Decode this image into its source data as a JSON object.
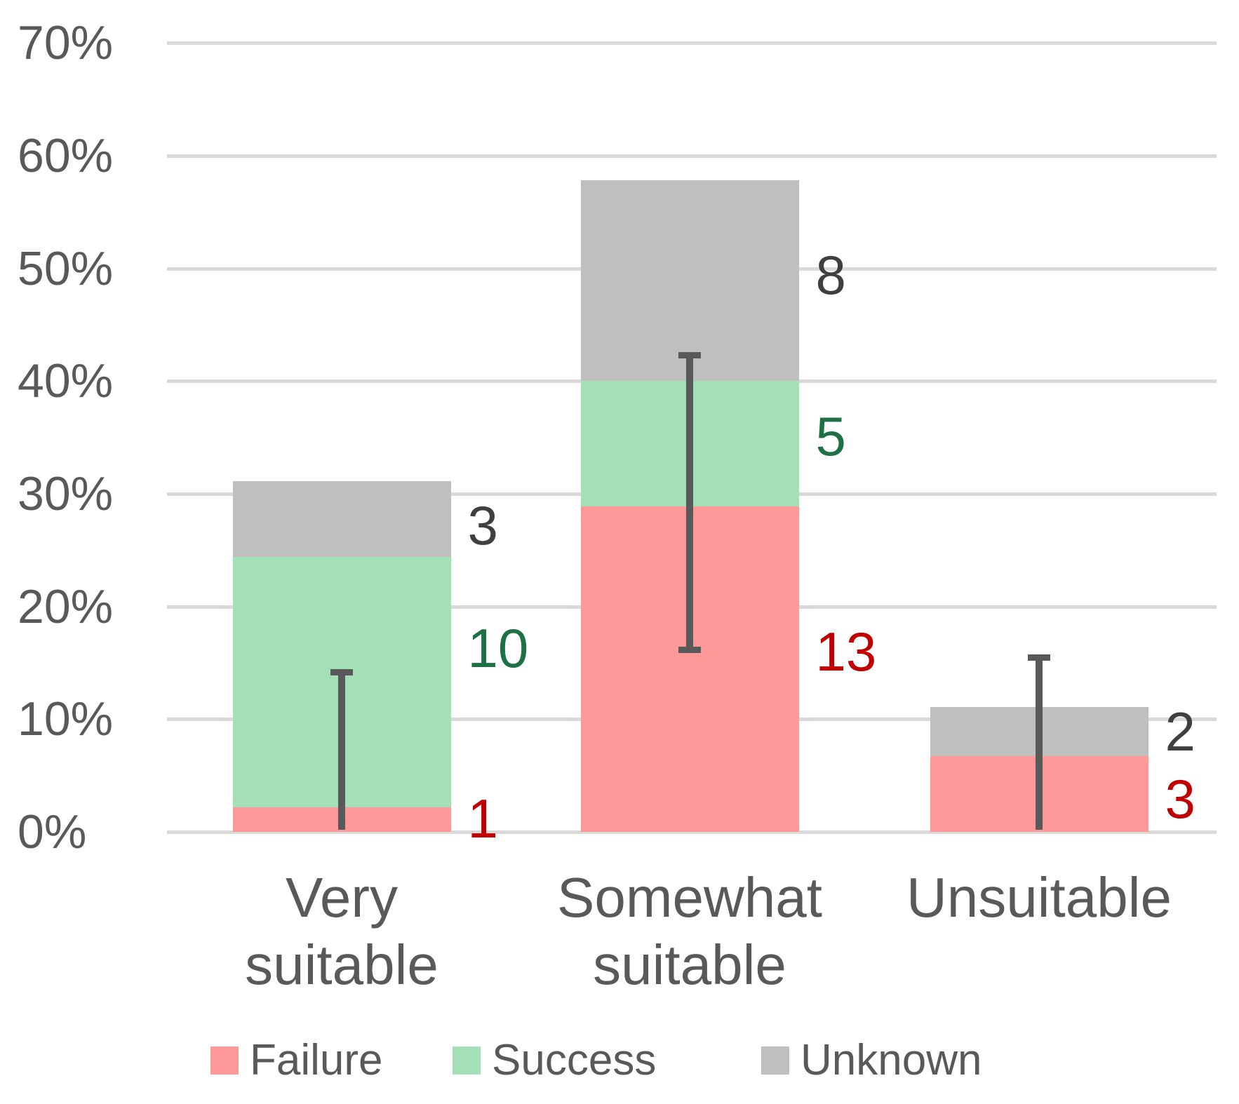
{
  "chart_data": {
    "type": "bar",
    "stacked": true,
    "title": "",
    "categories": [
      "Very suitable",
      "Somewhat suitable",
      "Unsuitable"
    ],
    "category_lines": [
      [
        "Very",
        "suitable"
      ],
      [
        "Somewhat",
        "suitable"
      ],
      [
        "Unsuitable"
      ]
    ],
    "series": [
      {
        "name": "Failure",
        "color": "#FF9999",
        "label_color": "#C00000",
        "values_pct": [
          2.2,
          28.9,
          6.7
        ],
        "counts": [
          1,
          13,
          3
        ],
        "label_pct": [
          1.2,
          16.0,
          2.9
        ]
      },
      {
        "name": "Success",
        "color": "#A3E0B8",
        "label_color": "#1E7145",
        "values_pct": [
          22.2,
          11.1,
          0
        ],
        "counts": [
          10,
          5,
          null
        ],
        "label_pct": [
          16.3,
          35.1,
          null
        ]
      },
      {
        "name": "Unknown",
        "color": "#BFBFBF",
        "label_color": "#3F3F3F",
        "values_pct": [
          6.7,
          17.8,
          4.4
        ],
        "counts": [
          3,
          8,
          2
        ],
        "label_pct": [
          27.2,
          49.4,
          8.9
        ]
      }
    ],
    "stack_totals_pct": [
      31.1,
      57.8,
      11.1
    ],
    "error_bars": [
      {
        "low": 0.2,
        "high": 14.2,
        "top_cap": true,
        "bottom_cap": false
      },
      {
        "low": 16.2,
        "high": 42.3,
        "top_cap": true,
        "bottom_cap": true
      },
      {
        "low": 0.2,
        "high": 15.5,
        "top_cap": true,
        "bottom_cap": false
      }
    ],
    "y_axis": {
      "tick_labels": [
        "70%",
        "60%",
        "50%",
        "40%",
        "30%",
        "20%",
        "10%",
        "0%"
      ],
      "tick_values": [
        70,
        60,
        50,
        40,
        30,
        20,
        10,
        0
      ],
      "min": 0,
      "max": 70,
      "unit": "%",
      "grid": true
    },
    "legend": {
      "position": "bottom",
      "entries": [
        "Failure",
        "Success",
        "Unknown"
      ]
    },
    "colors": {
      "gridline": "#D9D9D9",
      "axis_text": "#595959",
      "error_bar": "#595959"
    }
  }
}
